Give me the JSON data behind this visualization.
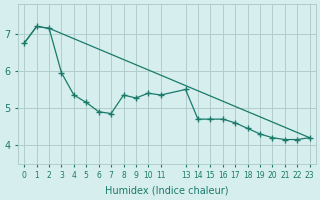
{
  "xlabel": "Humidex (Indice chaleur)",
  "bg_color": "#d6eeee",
  "grid_color": "#b0cccc",
  "line_color": "#1a7a6a",
  "ylim": [
    3.5,
    7.8
  ],
  "xlim": [
    -0.5,
    23.5
  ],
  "series1_x": [
    0,
    1,
    2,
    3,
    4,
    5,
    6,
    7,
    8,
    9,
    10,
    11,
    13,
    14,
    15,
    16,
    17,
    18,
    19,
    20,
    21,
    22,
    23
  ],
  "series1_y": [
    6.75,
    7.2,
    7.15,
    5.95,
    5.35,
    5.15,
    4.9,
    4.85,
    5.35,
    5.27,
    5.4,
    5.35,
    5.5,
    4.7,
    4.7,
    4.7,
    4.6,
    4.45,
    4.3,
    4.2,
    4.15,
    4.15,
    4.2
  ],
  "series2_x": [
    0,
    1,
    2,
    23
  ],
  "series2_y": [
    6.75,
    7.2,
    7.15,
    4.2
  ],
  "x_tick_positions": [
    0,
    1,
    2,
    3,
    4,
    5,
    6,
    7,
    8,
    9,
    10,
    11,
    13,
    14,
    15,
    16,
    17,
    18,
    19,
    20,
    21,
    22,
    23
  ],
  "x_tick_labels": [
    "0",
    "1",
    "2",
    "3",
    "4",
    "5",
    "6",
    "7",
    "8",
    "9",
    "10",
    "11",
    "13",
    "14",
    "15",
    "16",
    "17",
    "18",
    "19",
    "20",
    "21",
    "22",
    "23"
  ],
  "y_tick_positions": [
    4,
    5,
    6,
    7
  ],
  "y_tick_labels": [
    "4",
    "5",
    "6",
    "7"
  ]
}
